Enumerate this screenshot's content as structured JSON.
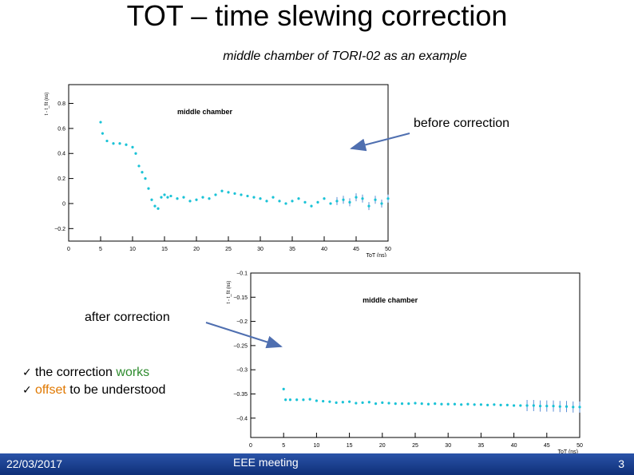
{
  "slide": {
    "title": "TOT – time slewing correction",
    "subtitle": "middle chamber of TORI-02 as an example",
    "label_before": "before correction",
    "label_after": "after correction",
    "checklist": [
      {
        "mark": "✓",
        "parts": [
          {
            "text": "the correction ",
            "color": "#000000"
          },
          {
            "text": "works",
            "color": "#2e8b2e"
          }
        ]
      },
      {
        "mark": "✓",
        "parts": [
          {
            "text": "offset",
            "color": "#e07800"
          },
          {
            "text": " to be understood",
            "color": "#000000"
          }
        ]
      }
    ],
    "footer": {
      "date": "22/03/2017",
      "event": "EEE meeting",
      "page": "3"
    },
    "colors": {
      "footer": "#1f3f8f",
      "arrow": "#4f6fb0",
      "markers": "#19c3d6",
      "works": "#2e8b2e",
      "offset": "#e07800"
    }
  },
  "chart_data": [
    {
      "type": "scatter",
      "title": "middle chamber",
      "xlabel": "ToT (ns)",
      "ylabel": "t - t_fit (ns)",
      "xlim": [
        0,
        50
      ],
      "ylim": [
        -0.3,
        0.95
      ],
      "xticks": [
        0,
        5,
        10,
        15,
        20,
        25,
        30,
        35,
        40,
        45,
        50
      ],
      "yticks": [
        -0.2,
        0,
        0.2,
        0.4,
        0.6,
        0.8
      ],
      "ytick_labels": [
        "−0.2",
        "0",
        "0.2",
        "0.4",
        "0.6",
        "0.8"
      ],
      "x": [
        5,
        5.3,
        6,
        7,
        8,
        9,
        10,
        10.5,
        11,
        11.5,
        12,
        12.5,
        13,
        13.5,
        14,
        14.5,
        15,
        15.5,
        16,
        17,
        18,
        19,
        20,
        21,
        22,
        23,
        24,
        25,
        26,
        27,
        28,
        29,
        30,
        31,
        32,
        33,
        34,
        35,
        36,
        37,
        38,
        39,
        40,
        41,
        42,
        43,
        44,
        45,
        46,
        47,
        48,
        49,
        50
      ],
      "y": [
        0.65,
        0.56,
        0.5,
        0.48,
        0.48,
        0.47,
        0.45,
        0.4,
        0.3,
        0.25,
        0.2,
        0.12,
        0.03,
        -0.02,
        -0.04,
        0.05,
        0.07,
        0.05,
        0.06,
        0.04,
        0.05,
        0.02,
        0.03,
        0.05,
        0.04,
        0.07,
        0.1,
        0.09,
        0.08,
        0.07,
        0.06,
        0.05,
        0.04,
        0.02,
        0.05,
        0.02,
        0.0,
        0.02,
        0.04,
        0.01,
        -0.02,
        0.01,
        0.04,
        0.0,
        0.02,
        0.03,
        0.01,
        0.05,
        0.04,
        -0.02,
        0.03,
        0.0,
        0.04
      ]
    },
    {
      "type": "scatter",
      "title": "middle chamber",
      "xlabel": "ToT (ns)",
      "ylabel": "t - t_fit (ns)",
      "xlim": [
        0,
        50
      ],
      "ylim": [
        -0.44,
        -0.1
      ],
      "xticks": [
        0,
        5,
        10,
        15,
        20,
        25,
        30,
        35,
        40,
        45,
        50
      ],
      "yticks": [
        -0.4,
        -0.35,
        -0.3,
        -0.25,
        -0.2,
        -0.15,
        -0.1
      ],
      "ytick_labels": [
        "−0.4",
        "−0.35",
        "−0.3",
        "−0.25",
        "−0.2",
        "−0.15",
        "−0.1"
      ],
      "x": [
        5,
        5.3,
        6,
        7,
        8,
        9,
        10,
        11,
        12,
        13,
        14,
        15,
        16,
        17,
        18,
        19,
        20,
        21,
        22,
        23,
        24,
        25,
        26,
        27,
        28,
        29,
        30,
        31,
        32,
        33,
        34,
        35,
        36,
        37,
        38,
        39,
        40,
        41,
        42,
        43,
        44,
        45,
        46,
        47,
        48,
        49,
        50
      ],
      "y": [
        -0.34,
        -0.362,
        -0.362,
        -0.362,
        -0.362,
        -0.361,
        -0.364,
        -0.365,
        -0.366,
        -0.368,
        -0.367,
        -0.366,
        -0.369,
        -0.368,
        -0.367,
        -0.37,
        -0.368,
        -0.369,
        -0.37,
        -0.37,
        -0.37,
        -0.369,
        -0.37,
        -0.371,
        -0.37,
        -0.371,
        -0.371,
        -0.371,
        -0.372,
        -0.371,
        -0.372,
        -0.372,
        -0.373,
        -0.372,
        -0.373,
        -0.373,
        -0.374,
        -0.374,
        -0.374,
        -0.374,
        -0.375,
        -0.375,
        -0.375,
        -0.376,
        -0.376,
        -0.377,
        -0.377
      ]
    }
  ]
}
